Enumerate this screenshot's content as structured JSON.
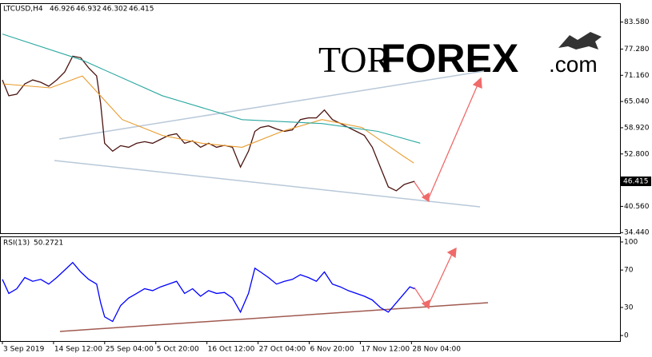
{
  "chart_data": [
    {
      "type": "line",
      "symbol": "LTCUSD,H4",
      "ohlc": [
        46.926,
        46.932,
        46.302,
        46.415
      ],
      "current_price": 46.415,
      "watermark": [
        "TOR",
        "FOREX",
        ".com"
      ],
      "x": [
        0,
        8,
        18,
        28,
        38,
        48,
        58,
        68,
        78,
        88,
        98,
        108,
        118,
        123,
        128,
        138,
        148,
        158,
        168,
        178,
        188,
        198,
        208,
        218,
        228,
        238,
        248,
        258,
        268,
        278,
        288,
        298,
        308,
        316,
        323,
        333,
        343,
        353,
        363,
        373,
        383,
        393,
        403,
        413,
        423,
        433,
        443,
        453,
        463,
        473,
        483,
        493,
        503,
        510,
        516
      ],
      "xlim": [
        -2,
        773
      ],
      "ylim": [
        34.3,
        87.8
      ],
      "yticks": [
        {
          "value": 83.58,
          "label": "83.580"
        },
        {
          "value": 77.28,
          "label": "77.280"
        },
        {
          "value": 71.16,
          "label": "71.160"
        },
        {
          "value": 65.04,
          "label": "65.040"
        },
        {
          "value": 58.92,
          "label": "58.920"
        },
        {
          "value": 52.8,
          "label": "52.800"
        },
        {
          "value": 40.56,
          "label": "40.560"
        },
        {
          "value": 34.44,
          "label": "34.440"
        }
      ],
      "series": [
        {
          "color": "#4a1410",
          "values": [
            70.08,
            66.38,
            66.75,
            69.16,
            70.08,
            69.53,
            68.6,
            70.08,
            71.93,
            75.63,
            75.26,
            72.86,
            71.01,
            64.53,
            55.29,
            53.44,
            54.73,
            54.36,
            55.29,
            55.66,
            55.29,
            56.21,
            57.14,
            57.51,
            55.29,
            55.84,
            54.36,
            55.29,
            54.36,
            54.81,
            54.36,
            49.74,
            53.44,
            58.06,
            58.99,
            59.36,
            58.62,
            58.06,
            58.43,
            60.83,
            61.21,
            61.21,
            63.06,
            60.83,
            59.91,
            58.99,
            58.06,
            57.14,
            54.36,
            49.74,
            45.12,
            44.19,
            45.67,
            46.1,
            46.41
          ]
        },
        {
          "color": "#e89a2a",
          "x": [
            0,
            60,
            100,
            150,
            200,
            250,
            300,
            350,
            400,
            450,
            500,
            515
          ],
          "values": [
            69.16,
            68.23,
            71.01,
            60.83,
            57.14,
            55.29,
            54.36,
            58.06,
            60.83,
            58.99,
            52.51,
            50.67
          ]
        },
        {
          "color": "#2aa8a0",
          "x": [
            0,
            100,
            200,
            300,
            400,
            470,
            523
          ],
          "values": [
            80.8,
            74.7,
            66.4,
            60.8,
            59.9,
            58.06,
            55.3
          ]
        }
      ]
    },
    {
      "type": "line",
      "indicator": "RSI(13)",
      "last": 50.2721,
      "x": [
        0,
        8,
        18,
        28,
        38,
        48,
        58,
        68,
        78,
        88,
        98,
        108,
        118,
        123,
        128,
        138,
        148,
        158,
        168,
        178,
        188,
        198,
        208,
        218,
        228,
        238,
        248,
        258,
        268,
        278,
        288,
        298,
        308,
        316,
        323,
        333,
        343,
        353,
        363,
        373,
        383,
        393,
        403,
        413,
        423,
        433,
        443,
        453,
        463,
        473,
        483,
        493,
        503,
        510,
        516
      ],
      "xlim": [
        -2,
        773
      ],
      "ylim": [
        -5.9,
        105.1
      ],
      "yticks": [
        100,
        70,
        30,
        0
      ],
      "xticks": [
        {
          "value": 0,
          "label": "3 Sep 2019"
        },
        {
          "value": 64,
          "label": "14 Sep 12:00"
        },
        {
          "value": 128,
          "label": "25 Sep 04:00"
        },
        {
          "value": 192,
          "label": "5 Oct 20:00"
        },
        {
          "value": 256,
          "label": "16 Oct 12:00"
        },
        {
          "value": 320,
          "label": "27 Oct 04:00"
        },
        {
          "value": 384,
          "label": "6 Nov 20:00"
        },
        {
          "value": 448,
          "label": "17 Nov 12:00"
        },
        {
          "value": 512,
          "label": "28 Nov 04:00"
        }
      ],
      "series": [
        {
          "color": "#0000ff",
          "values": [
            60,
            45,
            50,
            62,
            58,
            60,
            55,
            62,
            70,
            78,
            68,
            60,
            55,
            35,
            20,
            15,
            32,
            40,
            45,
            50,
            48,
            52,
            55,
            58,
            45,
            50,
            42,
            48,
            45,
            46,
            40,
            25,
            45,
            72,
            68,
            62,
            55,
            58,
            60,
            65,
            62,
            58,
            68,
            55,
            52,
            48,
            45,
            42,
            38,
            30,
            25,
            35,
            45,
            52,
            50
          ]
        }
      ]
    }
  ]
}
